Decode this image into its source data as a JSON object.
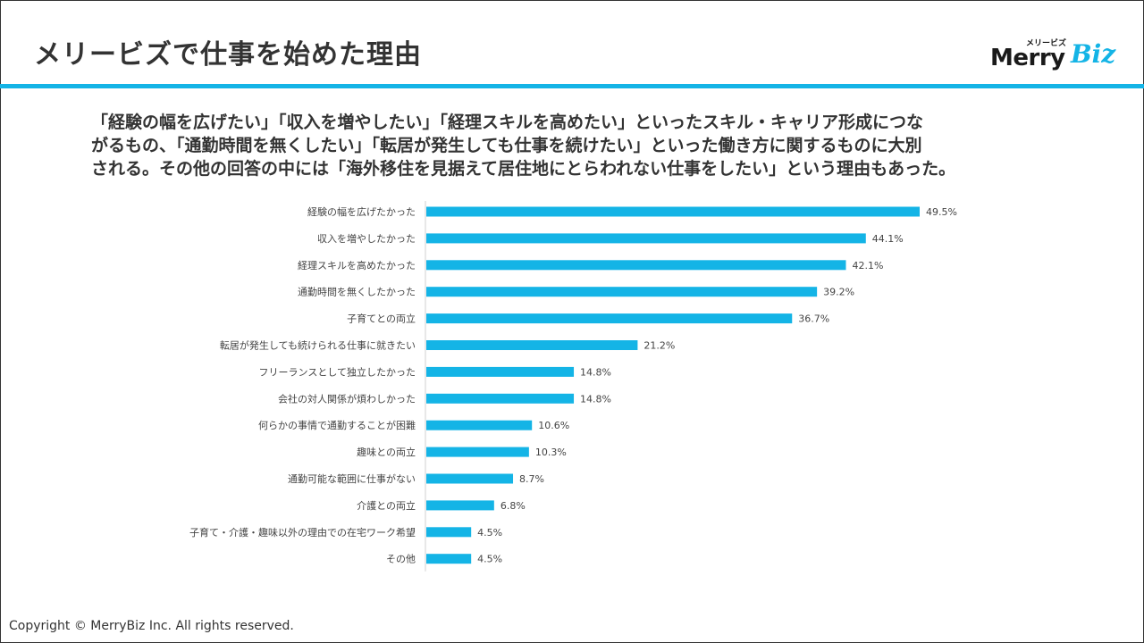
{
  "header": {
    "title": "メリービズで仕事を始めた理由",
    "logo": {
      "small": "メリービズ",
      "brand_main": "Merry",
      "brand_accent": "Biz"
    }
  },
  "summary": {
    "lines": [
      "「経験の幅を広げたい」「収入を増やしたい」「経理スキルを高めたい」といったスキル・キャリア形成につな",
      "がるもの、「通勤時間を無くしたい」「転居が発生しても仕事を続けたい」といった働き方に関するものに大別",
      "される。その他の回答の中には「海外移住を見据えて居住地にとらわれない仕事をしたい」という理由もあった。"
    ]
  },
  "chart_data": {
    "type": "bar",
    "orientation": "horizontal",
    "title": "",
    "xlabel": "",
    "ylabel": "",
    "xlim": [
      0,
      50
    ],
    "grid": false,
    "legend": "none",
    "value_suffix": "%",
    "categories": [
      "経験の幅を広げたかった",
      "収入を増やしたかった",
      "経理スキルを高めたかった",
      "通勤時間を無くしたかった",
      "子育てとの両立",
      "転居が発生しても続けられる仕事に就きたい",
      "フリーランスとして独立したかった",
      "会社の対人関係が煩わしかった",
      "何らかの事情で通勤することが困難",
      "趣味との両立",
      "通勤可能な範囲に仕事がない",
      "介護との両立",
      "子育て・介護・趣味以外の理由での在宅ワーク希望",
      "その他"
    ],
    "values": [
      49.5,
      44.1,
      42.1,
      39.2,
      36.7,
      21.2,
      14.8,
      14.8,
      10.6,
      10.3,
      8.7,
      6.8,
      4.5,
      4.5
    ],
    "labels": [
      "49.5%",
      "44.1%",
      "42.1%",
      "39.2%",
      "36.7%",
      "21.2%",
      "14.8%",
      "14.8%",
      "10.6%",
      "10.3%",
      "8.7%",
      "6.8%",
      "4.5%",
      "4.5%"
    ]
  },
  "colors": {
    "accent": "#14b4e6",
    "bar": "#14b4e6",
    "text": "#333333"
  },
  "footer": {
    "copyright": "Copyright © MerryBiz Inc. All rights reserved."
  }
}
